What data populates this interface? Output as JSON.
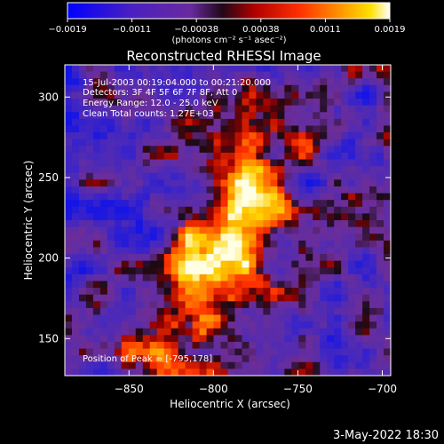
{
  "chart_data": {
    "type": "heatmap",
    "title": "Reconstructed RHESSI Image",
    "xlabel": "Heliocentric X (arcsec)",
    "ylabel": "Heliocentric Y (arcsec)",
    "xlim": [
      -888,
      -695
    ],
    "ylim": [
      127,
      320
    ],
    "x_ticks": [
      -850,
      -800,
      -750,
      -700
    ],
    "y_ticks": [
      150,
      200,
      250,
      300
    ],
    "x_tick_labels": [
      "−850",
      "−800",
      "−750",
      "−700"
    ],
    "y_tick_labels": [
      "150",
      "200",
      "250",
      "300"
    ],
    "colorbar": {
      "range": [
        -0.0019,
        0.0019
      ],
      "tick_labels": [
        "−0.0019",
        "−0.0011",
        "−0.00038",
        "0.00038",
        "0.0011",
        "0.0019"
      ],
      "unit_label": "(photons cm⁻² s⁻¹ asec⁻²)"
    },
    "annotations": [
      "15-Jul-2003 00:19:04.000 to 00:21:20.000",
      "Detectors: 3F 4F 5F 6F 7F 8F, Att 0",
      "Energy Range: 12.0 - 25.0 keV",
      "Clean     Total counts: 1.27E+03"
    ],
    "peak_label": "Position of Peak = [-795,178]",
    "peak_position": [
      -795,
      178
    ],
    "colors": [
      "#0000ff",
      "#5a2ba8",
      "#6a2aa0",
      "#1a0a1a",
      "#b00000",
      "#ff3000",
      "#ff8c00",
      "#ffd000",
      "#ffffff"
    ]
  },
  "footer": {
    "timestamp": "3-May-2022 18:30"
  }
}
